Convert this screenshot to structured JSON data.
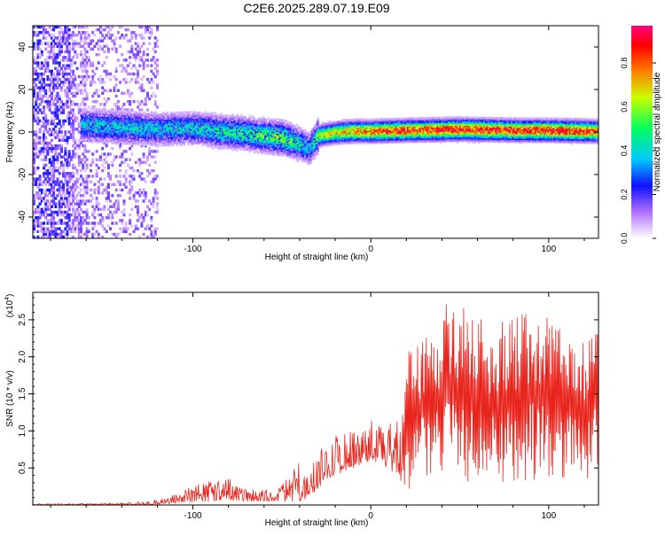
{
  "title": "C2E6.2025.289.07.19.E09",
  "chart_data": [
    {
      "type": "heatmap",
      "name": "spectrogram",
      "xlabel": "Height of straight line (km)",
      "ylabel": "Frequency (Hz)",
      "xlim": [
        -190,
        128
      ],
      "ylim": [
        -50,
        50
      ],
      "x_ticks": [
        -100,
        0,
        100
      ],
      "x_tick_labels": [
        "-100",
        "0",
        "100"
      ],
      "y_ticks": [
        -40,
        -20,
        0,
        20,
        40
      ],
      "y_tick_labels": [
        "-40",
        "-20",
        "0",
        "20",
        "40"
      ],
      "colorbar": {
        "label": "Normalized spectral amplitude",
        "range": [
          0.0,
          0.97
        ],
        "ticks": [
          0.0,
          0.2,
          0.4,
          0.6,
          0.8
        ],
        "tick_labels": [
          "0.0",
          "0.2",
          "0.4",
          "0.6",
          "0.8"
        ],
        "colormap_stops": [
          {
            "v": 0.0,
            "color": "#ffffff"
          },
          {
            "v": 0.12,
            "color": "#b070ff"
          },
          {
            "v": 0.24,
            "color": "#1010ff"
          },
          {
            "v": 0.36,
            "color": "#00c8ff"
          },
          {
            "v": 0.5,
            "color": "#00ff60"
          },
          {
            "v": 0.64,
            "color": "#c8ff00"
          },
          {
            "v": 0.76,
            "color": "#ff8000"
          },
          {
            "v": 0.88,
            "color": "#ff0000"
          },
          {
            "v": 0.97,
            "color": "#ff0080"
          }
        ]
      },
      "ridge_profile": {
        "x": [
          -163,
          -140,
          -120,
          -100,
          -85,
          -70,
          -60,
          -50,
          -40,
          -35,
          -30,
          -20,
          -10,
          0,
          20,
          50,
          80,
          100,
          128
        ],
        "center_hz": [
          3,
          2,
          1,
          1.5,
          0,
          -1,
          -2,
          -3,
          -6,
          -8,
          -2,
          -0.5,
          0,
          0,
          0.5,
          1,
          0.5,
          0.5,
          0
        ],
        "amplitude": [
          0.4,
          0.42,
          0.4,
          0.42,
          0.48,
          0.5,
          0.55,
          0.6,
          0.45,
          0.35,
          0.6,
          0.7,
          0.78,
          0.82,
          0.86,
          0.9,
          0.88,
          0.9,
          0.85
        ]
      },
      "noise_region_x": [
        -190,
        -120
      ]
    },
    {
      "type": "line",
      "name": "snr",
      "color": "#e8241c",
      "xlabel": "Height of straight line (km)",
      "ylabel": "SNR (10 * v/v)",
      "y_multiplier_label": "(x10",
      "y_multiplier_exp": "4",
      "xlim": [
        -190,
        128
      ],
      "ylim": [
        0,
        2.87
      ],
      "x_ticks": [
        -100,
        0,
        100
      ],
      "x_tick_labels": [
        "-100",
        "0",
        "100"
      ],
      "y_ticks": [
        0.5,
        1.0,
        1.5,
        2.0,
        2.5
      ],
      "y_tick_labels": [
        "0.5",
        "1.0",
        "1.5",
        "2.0",
        "2.5"
      ],
      "envelope": {
        "x": [
          -190,
          -160,
          -140,
          -125,
          -110,
          -100,
          -90,
          -80,
          -70,
          -60,
          -50,
          -45,
          -40,
          -35,
          -30,
          -25,
          -20,
          -10,
          0,
          10,
          18,
          20,
          30,
          40,
          45,
          50,
          60,
          70,
          80,
          90,
          100,
          110,
          120,
          128
        ],
        "lo": [
          0.0,
          0.0,
          0.0,
          0.0,
          0.02,
          0.04,
          0.05,
          0.06,
          0.05,
          0.05,
          0.05,
          0.05,
          0.05,
          0.1,
          0.2,
          0.35,
          0.4,
          0.5,
          0.6,
          0.5,
          0.3,
          0.2,
          0.3,
          0.3,
          0.3,
          0.3,
          0.3,
          0.3,
          0.3,
          0.3,
          0.3,
          0.3,
          0.3,
          0.3
        ],
        "hi": [
          0.02,
          0.02,
          0.03,
          0.05,
          0.15,
          0.25,
          0.35,
          0.38,
          0.25,
          0.2,
          0.3,
          0.45,
          0.6,
          0.35,
          0.75,
          0.85,
          1.0,
          1.05,
          1.15,
          1.1,
          1.3,
          2.1,
          2.3,
          2.6,
          2.88,
          2.7,
          2.6,
          2.45,
          2.5,
          2.75,
          2.55,
          2.4,
          2.3,
          2.7
        ]
      }
    }
  ]
}
